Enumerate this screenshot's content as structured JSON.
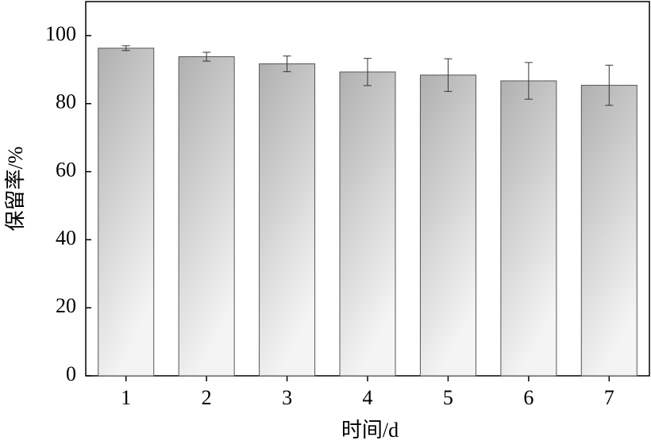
{
  "chart_data": {
    "type": "bar",
    "xlabel": "时间/d",
    "ylabel": "保留率/%",
    "categories": [
      "1",
      "2",
      "3",
      "4",
      "5",
      "6",
      "7"
    ],
    "values": [
      96.3,
      93.8,
      91.7,
      89.3,
      88.4,
      86.7,
      85.4
    ],
    "errors": [
      0.7,
      1.3,
      2.3,
      4.0,
      4.8,
      5.4,
      5.9
    ],
    "color": "#b0b0b0",
    "ylim": [
      0,
      110
    ],
    "yticks": [
      0,
      20,
      40,
      60,
      80,
      100
    ],
    "grid": false
  }
}
